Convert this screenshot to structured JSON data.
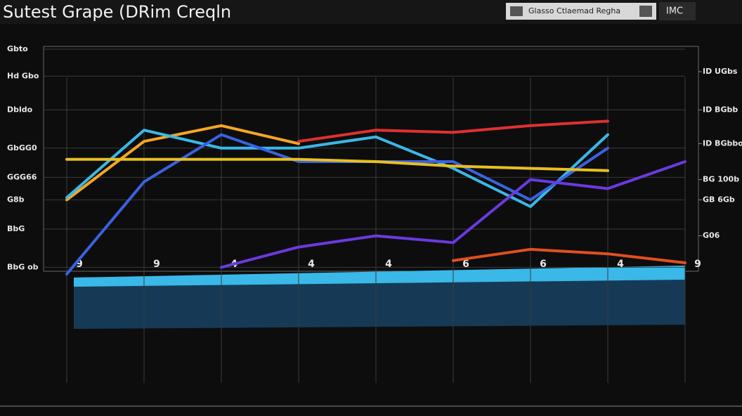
{
  "header": {
    "button": "Glasso Ctlaemad Regha",
    "tab": "IMC"
  },
  "chart_data": {
    "type": "line",
    "title": "Sutest Grape (DRim Creqln",
    "categories": [
      "9",
      "9",
      "4",
      "4",
      "4",
      "6",
      "6",
      "4",
      "9"
    ],
    "series": [
      {
        "color": "#f5a623",
        "values": [
          33,
          59,
          66,
          58,
          null,
          null,
          null,
          null,
          null
        ]
      },
      {
        "color": "#3ab8e8",
        "values": [
          34,
          64,
          56,
          56,
          61,
          47,
          30,
          62,
          null
        ]
      },
      {
        "color": "#3a62e0",
        "values": [
          0,
          41,
          62,
          50,
          50,
          50,
          33,
          56,
          null
        ]
      },
      {
        "color": "#e03030",
        "values": [
          null,
          null,
          null,
          59,
          64,
          63,
          66,
          68,
          null
        ]
      },
      {
        "color": "#6a3adf",
        "values": [
          null,
          null,
          3,
          12,
          17,
          14,
          42,
          38,
          50
        ]
      },
      {
        "color": "#e8c020",
        "values": [
          51,
          51,
          51,
          51,
          50,
          48,
          47,
          46,
          null
        ]
      },
      {
        "color": "#e05020",
        "values": [
          null,
          null,
          null,
          null,
          null,
          6,
          11,
          9,
          5
        ]
      }
    ],
    "ylim": [
      0,
      100
    ],
    "yticks": [
      {
        "value": 100,
        "label": "Gbto"
      },
      {
        "value": 88,
        "label": "Hd Gbo"
      },
      {
        "value": 73,
        "label": "Dbldo"
      },
      {
        "value": 56,
        "label": "GbGG0"
      },
      {
        "value": 43,
        "label": "GGG66"
      },
      {
        "value": 33,
        "label": "G8b"
      },
      {
        "value": 20,
        "label": "BbG"
      },
      {
        "value": 3,
        "label": "BbG ob"
      }
    ],
    "y2lim": [
      0,
      100
    ],
    "y2ticks": [
      {
        "value": 90,
        "label": "ID UGbs"
      },
      {
        "value": 73,
        "label": "ID BGbb"
      },
      {
        "value": 58,
        "label": "ID BGbbo"
      },
      {
        "value": 42,
        "label": "BG 100b"
      },
      {
        "value": 33,
        "label": "GB 6Gb"
      },
      {
        "value": 17,
        "label": "G06"
      }
    ],
    "grid": true
  }
}
